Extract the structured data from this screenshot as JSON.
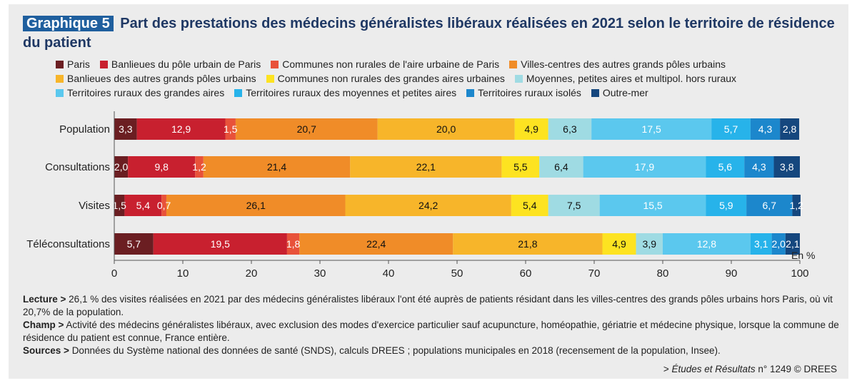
{
  "header": {
    "tag": "Graphique 5",
    "title": "Part des prestations des médecins généralistes libéraux réalisées en 2021 selon le territoire de résidence du patient"
  },
  "chart_data": {
    "type": "bar",
    "orientation": "horizontal",
    "stacked": true,
    "unit_label": "En %",
    "xlim": [
      0,
      100
    ],
    "x_ticks": [
      "0",
      "10",
      "20",
      "30",
      "40",
      "50",
      "60",
      "70",
      "80",
      "90",
      "100"
    ],
    "categories": [
      "Population",
      "Consultations",
      "Visites",
      "Téléconsultations"
    ],
    "legend_position": "top",
    "series": [
      {
        "name": "Paris",
        "color": "#6b1e22",
        "values": [
          3.3,
          2.0,
          1.5,
          5.7
        ],
        "labels": [
          "3,3",
          "2,0",
          "1,5",
          "5,7"
        ],
        "label_color": "#ffffff"
      },
      {
        "name": "Banlieues du pôle urbain de Paris",
        "color": "#c8202f",
        "values": [
          12.9,
          9.8,
          5.4,
          19.5
        ],
        "labels": [
          "12,9",
          "9,8",
          "5,4",
          "19,5"
        ],
        "label_color": "#ffffff"
      },
      {
        "name": "Communes non rurales de l'aire urbaine de Paris",
        "color": "#e8523a",
        "values": [
          1.5,
          1.2,
          0.7,
          1.8
        ],
        "labels": [
          "1,5",
          "1,2",
          "0,7",
          "1,8"
        ],
        "label_color": "#ffffff"
      },
      {
        "name": "Villes-centres des autres grands pôles urbains",
        "color": "#f08c28",
        "values": [
          20.7,
          21.4,
          26.1,
          22.4
        ],
        "labels": [
          "20,7",
          "21,4",
          "26,1",
          "22,4"
        ],
        "label_color": "#111111"
      },
      {
        "name": "Banlieues des autres grands pôles urbains",
        "color": "#f7b52a",
        "values": [
          20.0,
          22.1,
          24.2,
          21.8
        ],
        "labels": [
          "20,0",
          "22,1",
          "24,2",
          "21,8"
        ],
        "label_color": "#111111"
      },
      {
        "name": "Communes non rurales des grandes aires urbaines",
        "color": "#fde321",
        "values": [
          4.9,
          5.5,
          5.4,
          4.9
        ],
        "labels": [
          "4,9",
          "5,5",
          "5,4",
          "4,9"
        ],
        "label_color": "#111111"
      },
      {
        "name": "Moyennes, petites aires et multipol. hors ruraux",
        "color": "#9fdbe3",
        "values": [
          6.3,
          6.4,
          7.5,
          3.9
        ],
        "labels": [
          "6,3",
          "6,4",
          "7,5",
          "3,9"
        ],
        "label_color": "#111111"
      },
      {
        "name": "Territoires ruraux des grandes aires",
        "color": "#5bc8ee",
        "values": [
          17.5,
          17.9,
          15.5,
          12.8
        ],
        "labels": [
          "17,5",
          "17,9",
          "15,5",
          "12,8"
        ],
        "label_color": "#ffffff"
      },
      {
        "name": "Territoires ruraux des moyennes et petites aires",
        "color": "#27b3ea",
        "values": [
          5.7,
          5.6,
          5.9,
          3.1
        ],
        "labels": [
          "5,7",
          "5,6",
          "5,9",
          "3,1"
        ],
        "label_color": "#ffffff"
      },
      {
        "name": "Territoires ruraux isolés",
        "color": "#1c87cc",
        "values": [
          4.3,
          4.3,
          6.7,
          2.0
        ],
        "labels": [
          "4,3",
          "4,3",
          "6,7",
          "2,0"
        ],
        "label_color": "#ffffff"
      },
      {
        "name": "Outre-mer",
        "color": "#15477e",
        "values": [
          2.8,
          3.8,
          1.2,
          2.1
        ],
        "labels": [
          "2,8",
          "3,8",
          "1,2",
          "2,1"
        ],
        "label_color": "#ffffff"
      }
    ]
  },
  "notes": {
    "lecture_label": "Lecture >",
    "lecture_text": "26,1 % des visites réalisées en 2021 par des médecins généralistes libéraux l'ont été auprès de patients résidant dans les villes-centres des grands pôles urbains hors Paris, où vit 20,7% de la population.",
    "champ_label": "Champ >",
    "champ_text": "Activité des médecins généralistes libéraux, avec exclusion des modes d'exercice particulier sauf acupuncture, homéopathie, gériatrie et médecine physique, lorsque la commune de résidence du patient est connue, France entière.",
    "sources_label": "Sources >",
    "sources_text": "Données du Système national des données de santé (SNDS), calculs DREES ; populations municipales en 2018 (recensement de la population, Insee)."
  },
  "source_line": {
    "prefix": ">",
    "publication": "Études et Résultats",
    "suffix": "n° 1249 © DREES"
  }
}
